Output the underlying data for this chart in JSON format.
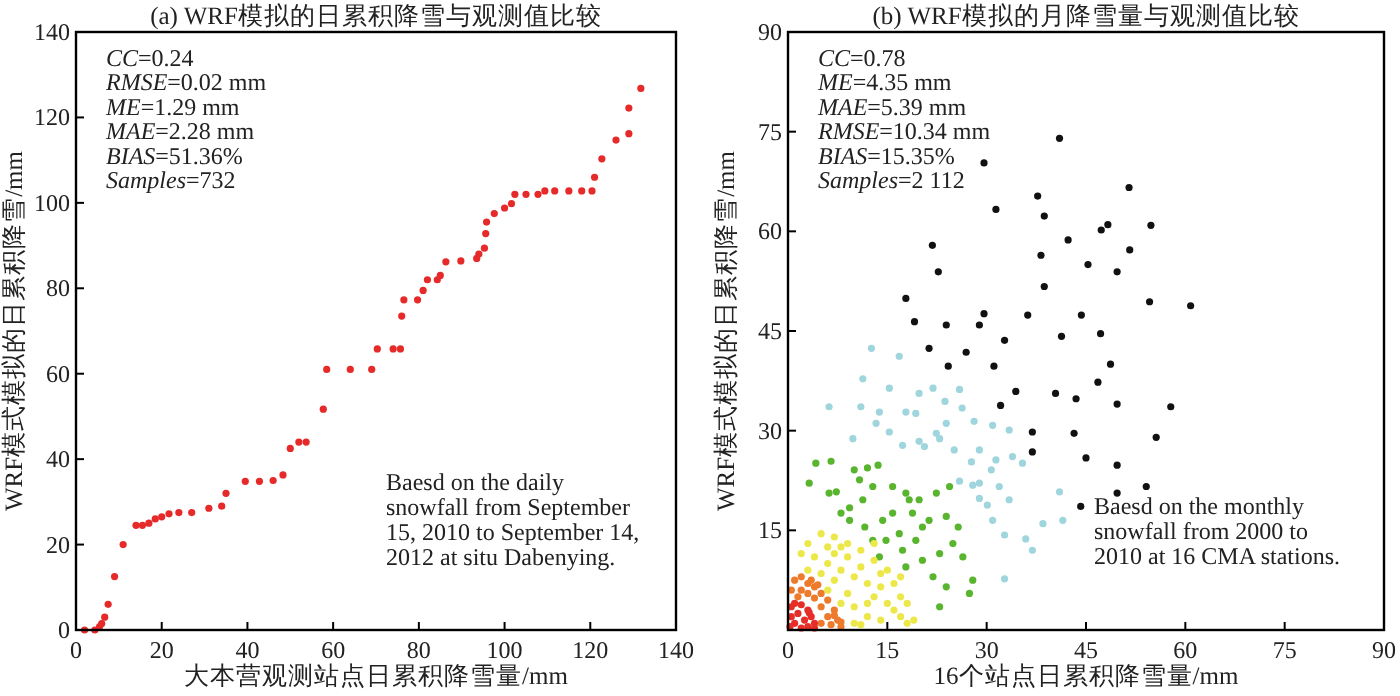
{
  "chart_data": [
    {
      "type": "scatter",
      "title": "(a)  WRF模拟的日累积降雪与观测值比较",
      "xlabel": "大本营观测站点日累积降雪量/mm",
      "ylabel": "WRF模式模拟的日累积降雪/mm",
      "xlim": [
        0,
        140
      ],
      "ylim": [
        0,
        140
      ],
      "xticks": [
        0,
        20,
        40,
        60,
        80,
        100,
        120,
        140
      ],
      "yticks": [
        0,
        20,
        40,
        60,
        80,
        100,
        120,
        140
      ],
      "marker": "circle",
      "annotations": [
        "CC=0.24",
        "RMSE=0.02 mm",
        "ME=1.29 mm",
        "MAE=2.28 mm",
        "BIAS=51.36%",
        "Samples=732",
        "Baesd on the daily snowfall from September 15, 2010 to September 14, 2012 at situ Dabenying."
      ],
      "series": [
        {
          "color": "#e62a2a",
          "x": [
            2,
            4.4,
            5.5,
            6,
            6.7,
            7.5,
            9,
            11,
            14,
            15.5,
            17,
            18.5,
            20,
            21.7,
            24,
            27,
            31,
            34,
            35,
            39.5,
            42.8,
            46,
            48.3,
            50,
            52,
            53.7,
            57.7,
            58.5,
            64,
            69,
            70.3,
            74,
            75.7,
            76,
            76.5,
            79.7,
            81,
            82,
            84.3,
            85,
            86.3,
            89.8,
            93.5,
            94,
            95.3,
            95.6,
            95.8,
            97.6,
            100,
            101.6,
            102.4,
            105,
            107.8,
            109.4,
            111.7,
            115,
            118,
            120.4,
            121,
            122.7,
            126,
            129,
            129,
            131.8
          ],
          "values": [
            0,
            0,
            0.8,
            1.5,
            3,
            6,
            12.5,
            20,
            24.5,
            24.5,
            25,
            26,
            26.5,
            27.2,
            27.5,
            27.5,
            28.5,
            29,
            32,
            34.8,
            34.8,
            35,
            36.3,
            42.5,
            44,
            44,
            51.7,
            61,
            61,
            61,
            65.8,
            65.8,
            65.8,
            73.5,
            77.3,
            77.3,
            79.5,
            82,
            82,
            83,
            86.2,
            86.4,
            87,
            88,
            89.4,
            92.8,
            95.5,
            97.5,
            98.8,
            99.8,
            102,
            102,
            102,
            102.8,
            102.8,
            102.8,
            102.8,
            102.8,
            106,
            110.3,
            114.7,
            116.2,
            122.2,
            126.8
          ]
        }
      ]
    },
    {
      "type": "scatter",
      "title": "(b)  WRF模拟的月降雪量与观测值比较",
      "xlabel": "16个站点日累积降雪量/mm",
      "ylabel": "WRF模式模拟的日累积降雪/mm",
      "xlim": [
        0,
        90
      ],
      "ylim": [
        0,
        90
      ],
      "xticks": [
        0,
        15,
        30,
        45,
        60,
        75,
        90
      ],
      "yticks": [
        {
          "value": 0,
          "label": null
        },
        15,
        30,
        45,
        60,
        75,
        90
      ],
      "marker": "circle",
      "annotations": [
        "CC=0.78",
        "ME=4.35 mm",
        "MAE=5.39 mm",
        "RMSE=10.34 mm",
        "BIAS=15.35%",
        "Samples=2 112",
        "Baesd on the monthly snowfall from 2000 to 2010 at 16 CMA stations."
      ],
      "series": [
        {
          "color": "#111111",
          "x": [
            41,
            29.6,
            51.5,
            37.7,
            31.4,
            38.7,
            48.3,
            47.3,
            54.8,
            21.8,
            42.3,
            51.6,
            38.2,
            22.7,
            45.3,
            49.7,
            38.7,
            17.8,
            54.6,
            60.8,
            19.1,
            29.6,
            23.9,
            28.9,
            36.2,
            44.3,
            21.3,
            26.9,
            32.7,
            41.3,
            47.2,
            24.2,
            31.1,
            48.7,
            32.1,
            34.4,
            40.4,
            43.5,
            46.8,
            49.7,
            57.8,
            36.9,
            43.2,
            55.6,
            36.9,
            45,
            49.7,
            49.7,
            54.1,
            44.2
          ],
          "values": [
            74,
            70.3,
            66.6,
            65.3,
            63.3,
            62.3,
            61,
            60.2,
            60.9,
            57.9,
            58.7,
            57.2,
            56.4,
            53.9,
            55,
            53.9,
            51.7,
            49.9,
            49.4,
            48.8,
            46.4,
            47.6,
            45.9,
            45.9,
            47.4,
            47.4,
            42.4,
            41.8,
            43.6,
            44.2,
            44.6,
            39.7,
            39.7,
            40,
            33.8,
            35.9,
            35.6,
            34.8,
            37.3,
            34,
            33.6,
            29.8,
            29.6,
            29,
            26.8,
            25.9,
            24.8,
            20.6,
            21.6,
            18.6
          ]
        },
        {
          "color": "#9fd5dc",
          "x": [
            12.6,
            16.8,
            11.3,
            15.3,
            6.2,
            11,
            19.8,
            21.9,
            25.9,
            13.8,
            17.8,
            19.3,
            23.7,
            26.3,
            9.8,
            13.3,
            15.3,
            19.8,
            22.4,
            23.9,
            28.1,
            30.9,
            33.4,
            17.3,
            22.9,
            20.6,
            25.1,
            28.9,
            33.9,
            35.4,
            27.7,
            31.4,
            30.7,
            25.9,
            27.9,
            28.9,
            31.9,
            33.4,
            28.9,
            30.9,
            32.7,
            35.9,
            38.5,
            41.5,
            36.9,
            32.7,
            41,
            30.1
          ],
          "values": [
            42.4,
            41.2,
            37.8,
            36.4,
            33.6,
            33.6,
            35.6,
            36.4,
            36.2,
            32.8,
            32.8,
            32.6,
            34.4,
            33.4,
            28.8,
            31.1,
            29.8,
            28.4,
            29.6,
            31.1,
            31.4,
            30.8,
            30.1,
            27.8,
            28.8,
            27.6,
            27.1,
            27.1,
            26.1,
            25.1,
            25.3,
            25.6,
            24.1,
            22.4,
            21.8,
            22.1,
            21.6,
            19.6,
            19.8,
            16.5,
            14.3,
            13.7,
            16,
            16.5,
            12,
            7.7,
            20.8,
            18.8
          ]
        },
        {
          "color": "#5ab52e",
          "x": [
            4.2,
            6.5,
            3.2,
            7.3,
            8,
            10,
            12,
            13.6,
            10.8,
            12.8,
            11.3,
            9.3,
            11.6,
            14.3,
            15.8,
            17.8,
            19.8,
            22.4,
            24.4,
            15.8,
            18.8,
            21.3,
            23.9,
            25.7,
            14.8,
            17.3,
            19.3,
            17.8,
            20.3,
            22.9,
            24.9,
            26.4,
            21.9,
            23.9,
            27.4,
            27.9,
            16.8,
            13.8,
            20.3,
            18.3,
            12.8,
            22.9,
            9.3,
            6.2
          ],
          "values": [
            25.1,
            25.4,
            22.1,
            20.8,
            17.6,
            24.1,
            24.4,
            24.8,
            22.6,
            21.6,
            19.6,
            18.4,
            15.5,
            16.5,
            21.6,
            20.6,
            19.6,
            20.6,
            21.6,
            17.6,
            17.6,
            16.5,
            17.1,
            15.5,
            13.5,
            12,
            13.5,
            9.5,
            10.5,
            11.5,
            13,
            11,
            8,
            6.5,
            5.5,
            7.5,
            14.5,
            11,
            15.5,
            19.6,
            13.5,
            3.5,
            16.5,
            20.6
          ]
        },
        {
          "color": "#ede84a",
          "x": [
            3,
            5,
            7,
            8,
            9,
            4,
            6,
            8,
            10,
            11,
            12,
            13,
            14,
            15,
            16,
            17,
            18,
            12,
            10,
            9,
            7,
            5,
            3,
            2,
            11,
            13,
            14,
            16,
            17,
            19,
            10,
            8,
            6,
            12,
            15,
            9,
            7,
            11,
            14,
            18,
            6,
            13,
            17
          ],
          "values": [
            13,
            14.5,
            14,
            12.5,
            11,
            11,
            10,
            9,
            8,
            9.5,
            7,
            5,
            6.5,
            4,
            3,
            2,
            1,
            2,
            3.5,
            5.5,
            7.5,
            8.5,
            9,
            11.5,
            12,
            10.5,
            8.5,
            7,
            5,
            1.5,
            1,
            4,
            6,
            4,
            9,
            13,
            11.5,
            0.8,
            1.5,
            4,
            12.5,
            13,
            8
          ]
        },
        {
          "color": "#ee7a2c",
          "x": [
            1,
            2,
            3,
            4,
            5,
            6,
            7,
            7.5,
            8,
            6,
            5,
            4,
            3,
            2,
            0.5,
            1.5,
            6.5,
            5,
            3.5,
            4.5,
            7,
            8
          ],
          "values": [
            7.5,
            8,
            7,
            6.5,
            5.5,
            4.5,
            3,
            1.5,
            0.5,
            2,
            3.5,
            4.8,
            5.5,
            6,
            6,
            5,
            0.8,
            1,
            7.5,
            6.8,
            2.2,
            1.2
          ]
        },
        {
          "color": "#e52e28",
          "x": [
            0.5,
            1,
            2,
            3,
            3.5,
            4,
            4,
            3,
            2.5,
            1.5,
            1,
            0.3,
            2,
            3.2,
            0.5
          ],
          "values": [
            3.5,
            4,
            3.8,
            3,
            2,
            1,
            0.3,
            0.5,
            1.5,
            2.5,
            1,
            0.5,
            0.3,
            2.6,
            2
          ]
        }
      ]
    }
  ]
}
